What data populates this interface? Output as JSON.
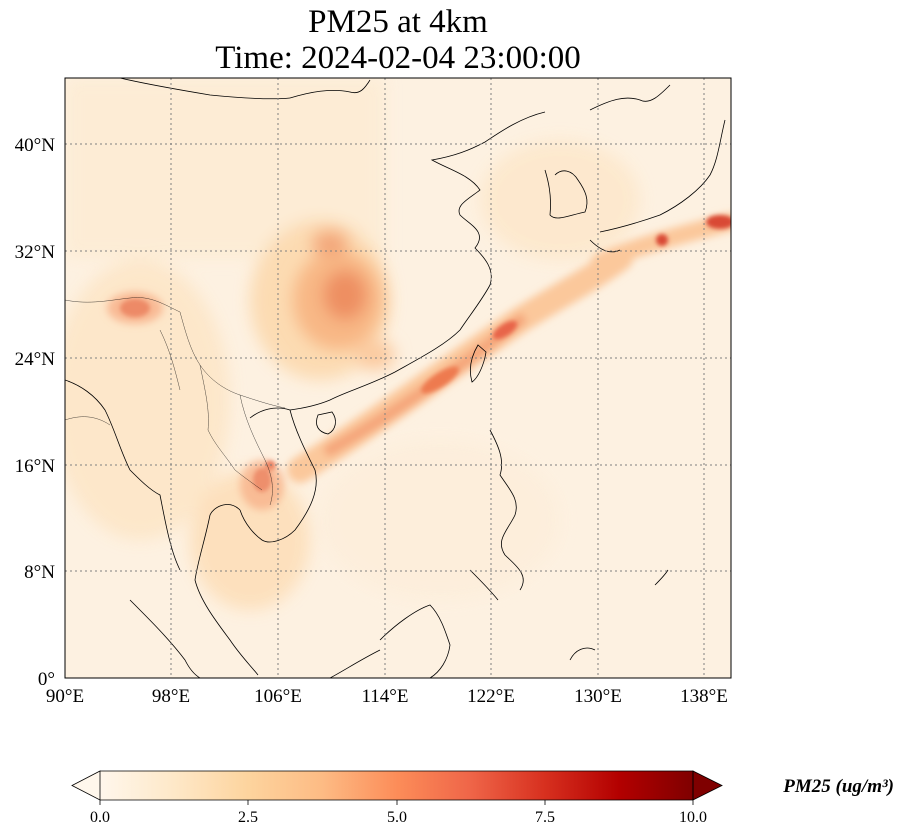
{
  "title": {
    "line1": "PM25 at 4km",
    "line2": "Time: 2024-02-04 23:00:00"
  },
  "map": {
    "lon_range": [
      90,
      140
    ],
    "lat_range": [
      0,
      44
    ],
    "lon_ticks": [
      "90°E",
      "98°E",
      "106°E",
      "114°E",
      "122°E",
      "130°E",
      "138°E"
    ],
    "lat_ticks": [
      "0°",
      "8°N",
      "16°N",
      "24°N",
      "32°N",
      "40°N"
    ],
    "gridlines": "dotted",
    "region": "East and Southeast Asia"
  },
  "colorbar": {
    "label": "PM25 (ug/m³)",
    "ticks": [
      "0.0",
      "2.5",
      "5.0",
      "7.5",
      "10.0"
    ],
    "min": 0.0,
    "max": 10.0,
    "extend": "both",
    "colormap": "OrRd",
    "colors": [
      "#fff7ec",
      "#fee8c8",
      "#fdd49e",
      "#fdbb84",
      "#fc8d59",
      "#ef6548",
      "#d7301f",
      "#b30000",
      "#7f0000"
    ]
  }
}
